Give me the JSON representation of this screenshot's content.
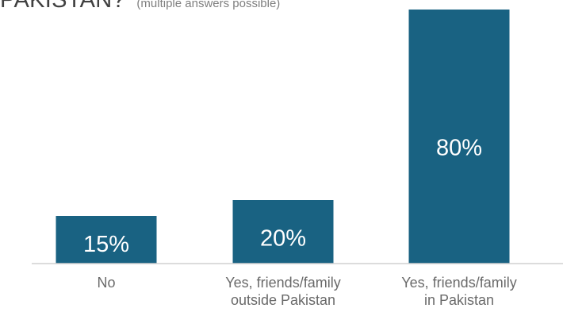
{
  "title": {
    "main": "PAKISTAN?",
    "sub": "(multiple answers possible)"
  },
  "colors": {
    "bar": "#196282",
    "bar_label": "#ffffff",
    "category_label": "#6a6a6a",
    "baseline": "#d0d0d0"
  },
  "chart_data": {
    "type": "bar",
    "categories": [
      [
        "No"
      ],
      [
        "Yes, friends/family",
        "outside Pakistan"
      ],
      [
        "Yes, friends/family",
        "in Pakistan"
      ]
    ],
    "values": [
      15,
      20,
      80
    ],
    "value_labels": [
      "15%",
      "20%",
      "80%"
    ],
    "unit": "%",
    "ylim": [
      0,
      80
    ],
    "grid": false,
    "legend": "none"
  }
}
